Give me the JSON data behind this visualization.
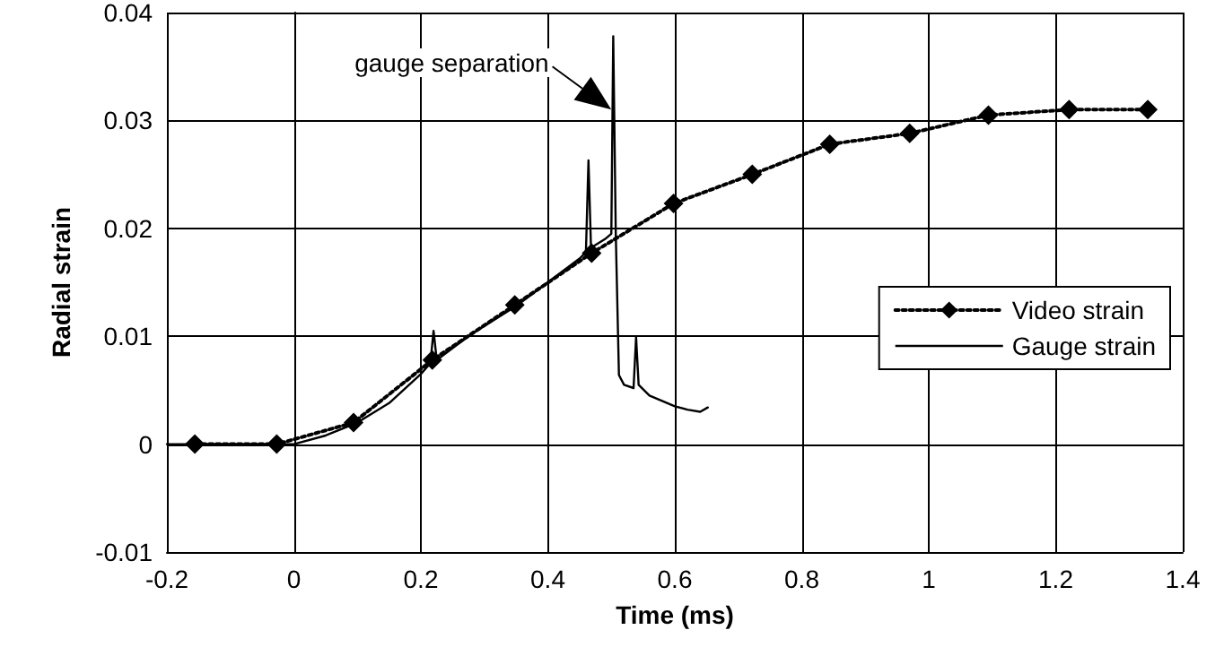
{
  "chart_data": {
    "type": "line",
    "xlabel": "Time (ms)",
    "ylabel": "Radial strain",
    "xlim": [
      -0.2,
      1.4
    ],
    "xticks": [
      -0.2,
      0,
      0.2,
      0.4,
      0.6,
      0.8,
      1,
      1.2,
      1.4
    ],
    "ylim": [
      -0.01,
      0.04
    ],
    "yticks": [
      -0.01,
      0,
      0.01,
      0.02,
      0.03,
      0.04
    ],
    "grid": true,
    "legend": "right",
    "annotations": [
      {
        "text": "gauge separation",
        "x": 0.5,
        "y": 0.031
      }
    ],
    "series": [
      {
        "name": "Video strain",
        "color": "#000000",
        "marker": "diamond",
        "line_style": "dotted",
        "x": [
          -0.156,
          -0.027,
          0.094,
          0.218,
          0.348,
          0.469,
          0.598,
          0.722,
          0.844,
          0.97,
          1.094,
          1.221,
          1.345
        ],
        "values": [
          0,
          0,
          0.002,
          0.0078,
          0.0129,
          0.0177,
          0.0223,
          0.025,
          0.0278,
          0.0288,
          0.0305,
          0.031,
          0.031
        ]
      },
      {
        "name": "Gauge strain",
        "color": "#000000",
        "marker": "none",
        "line_style": "solid",
        "x": [
          -0.2,
          -0.05,
          0,
          0.05,
          0.1,
          0.15,
          0.2,
          0.215,
          0.22,
          0.225,
          0.28,
          0.35,
          0.4,
          0.45,
          0.46,
          0.464,
          0.468,
          0.49,
          0.5,
          0.503,
          0.507,
          0.512,
          0.52,
          0.535,
          0.539,
          0.543,
          0.56,
          0.58,
          0.6,
          0.62,
          0.64,
          0.652
        ],
        "values": [
          0,
          0,
          0,
          0.0008,
          0.002,
          0.0038,
          0.0065,
          0.0075,
          0.0105,
          0.0078,
          0.0102,
          0.0128,
          0.015,
          0.0172,
          0.0178,
          0.0263,
          0.0182,
          0.019,
          0.0195,
          0.0378,
          0.0195,
          0.0064,
          0.0055,
          0.0052,
          0.0099,
          0.0055,
          0.0045,
          0.004,
          0.0035,
          0.0032,
          0.003,
          0.0034
        ]
      }
    ]
  }
}
